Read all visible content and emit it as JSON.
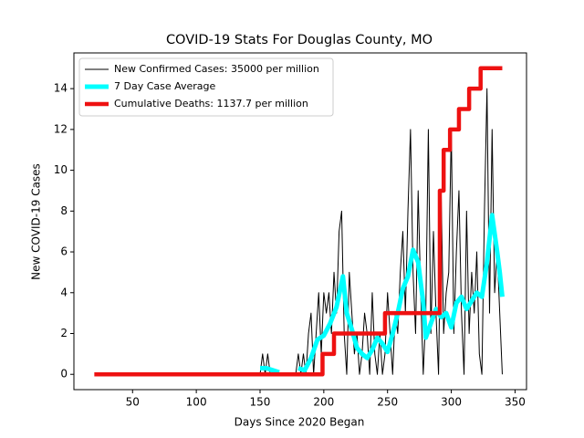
{
  "chart_data": {
    "type": "line",
    "title": "COVID-19 Stats For Douglas County, MO",
    "x_label": "Days Since 2020 Began",
    "y_label": "New COVID-19 Cases",
    "xlim": [
      4,
      359
    ],
    "ylim": [
      -0.75,
      15.75
    ],
    "xticks": [
      50,
      100,
      150,
      200,
      250,
      300,
      350
    ],
    "yticks": [
      0,
      2,
      4,
      6,
      8,
      10,
      12,
      14
    ],
    "legend": "upper left",
    "series": [
      {
        "name": "New Confirmed Cases: 35000 per million",
        "color": "#000000",
        "width": 1,
        "x": [
          146,
          148,
          150,
          152,
          154,
          156,
          158,
          160,
          162,
          164,
          166,
          168,
          170,
          172,
          174,
          176,
          178,
          180,
          182,
          184,
          186,
          188,
          190,
          192,
          194,
          196,
          198,
          200,
          202,
          204,
          206,
          208,
          210,
          212,
          214,
          216,
          218,
          220,
          222,
          224,
          226,
          228,
          230,
          232,
          234,
          236,
          238,
          240,
          242,
          244,
          246,
          248,
          250,
          252,
          254,
          256,
          258,
          260,
          262,
          264,
          266,
          268,
          270,
          272,
          274,
          276,
          278,
          280,
          282,
          284,
          286,
          288,
          290,
          292,
          294,
          296,
          298,
          300,
          302,
          304,
          306,
          308,
          310,
          312,
          314,
          316,
          318,
          320,
          322,
          324,
          326,
          328,
          330,
          332,
          334,
          336,
          338,
          340
        ],
        "values": [
          0,
          0,
          0,
          1,
          0,
          1,
          0,
          0,
          0,
          0,
          0,
          0,
          0,
          0,
          0,
          0,
          0,
          1,
          0,
          1,
          0,
          2,
          3,
          0,
          2,
          4,
          1,
          4,
          3,
          4,
          2,
          5,
          3,
          7,
          8,
          2,
          0,
          5,
          3,
          1,
          2,
          0,
          1,
          3,
          2,
          0,
          4,
          1,
          0,
          2,
          0,
          1,
          4,
          2,
          0,
          3,
          2,
          5,
          7,
          3,
          8,
          12,
          5,
          2,
          9,
          4,
          0,
          3,
          12,
          2,
          7,
          3,
          0,
          9,
          2,
          4,
          5,
          12,
          2,
          6,
          9,
          3,
          0,
          8,
          2,
          5,
          3,
          6,
          1,
          0,
          8,
          14,
          3,
          12,
          4,
          6,
          3,
          0
        ]
      },
      {
        "name": "7 Day Case Average",
        "color": "#00ffff",
        "width": 5,
        "x": [
          150,
          155,
          160,
          165,
          170,
          180,
          185,
          190,
          195,
          200,
          205,
          210,
          215,
          218,
          222,
          226,
          230,
          234,
          238,
          242,
          246,
          250,
          254,
          258,
          262,
          266,
          270,
          274,
          278,
          280,
          284,
          288,
          292,
          296,
          300,
          304,
          308,
          312,
          316,
          320,
          324,
          328,
          332,
          336,
          338,
          340
        ],
        "values": [
          0.3,
          0.3,
          0.2,
          0.1,
          null,
          0.3,
          0.2,
          0.8,
          1.7,
          1.9,
          2.5,
          3.3,
          4.8,
          3.0,
          2.2,
          1.3,
          1.0,
          0.8,
          1.2,
          1.8,
          1.5,
          1.1,
          2.0,
          3.0,
          4.2,
          4.8,
          6.1,
          5.5,
          3.5,
          1.8,
          2.5,
          3.2,
          2.8,
          3.0,
          2.3,
          3.5,
          3.8,
          3.2,
          3.6,
          4.0,
          3.8,
          5.5,
          7.8,
          6.0,
          5.0,
          3.8
        ]
      },
      {
        "name": "Cumulative Deaths: 1137.7 per million",
        "color": "#ee1111",
        "width": 4.5,
        "x": [
          20,
          199,
          199,
          208,
          208,
          248,
          248,
          291,
          291,
          294,
          294,
          299,
          299,
          306,
          306,
          314,
          314,
          323,
          323,
          340
        ],
        "values": [
          0,
          0,
          1,
          1,
          2,
          2,
          3,
          3,
          9,
          9,
          11,
          11,
          12,
          12,
          13,
          13,
          14,
          14,
          15,
          15
        ]
      }
    ]
  }
}
